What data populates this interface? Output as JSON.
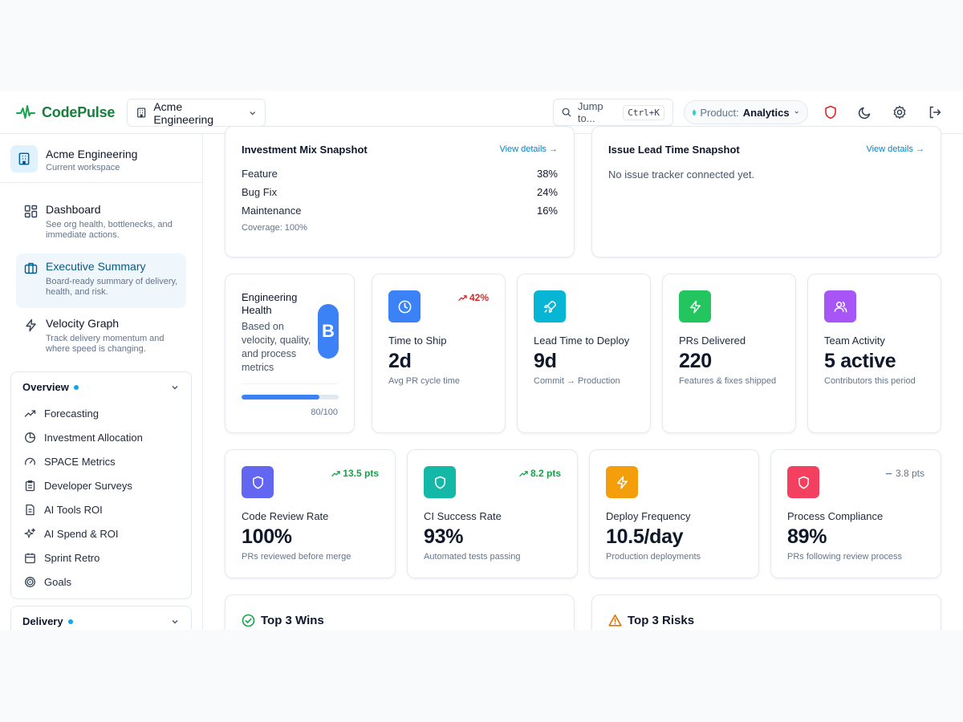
{
  "header": {
    "app_name": "CodePulse",
    "workspace_switch": "Acme Engineering",
    "search_label": "Jump to...",
    "search_shortcut": "Ctrl+K",
    "product_label": "Product:",
    "product_value": "Analytics"
  },
  "sidebar": {
    "workspace_name": "Acme Engineering",
    "workspace_sub": "Current workspace",
    "nav": [
      {
        "title": "Dashboard",
        "desc": "See org health, bottlenecks, and immediate actions."
      },
      {
        "title": "Executive Summary",
        "desc": "Board-ready summary of delivery, health, and risk."
      },
      {
        "title": "Velocity Graph",
        "desc": "Track delivery momentum and where speed is changing."
      }
    ],
    "overview": {
      "title": "Overview",
      "items": [
        "Forecasting",
        "Investment Allocation",
        "SPACE Metrics",
        "Developer Surveys",
        "AI Tools ROI",
        "AI Spend & ROI",
        "Sprint Retro",
        "Goals"
      ]
    },
    "delivery": {
      "title": "Delivery"
    }
  },
  "investment_mix": {
    "title": "Investment Mix Snapshot",
    "link": "View details →",
    "rows": [
      {
        "label": "Feature",
        "pct": "38%"
      },
      {
        "label": "Bug Fix",
        "pct": "24%"
      },
      {
        "label": "Maintenance",
        "pct": "16%"
      }
    ],
    "coverage": "Coverage: 100%"
  },
  "issue_lead": {
    "title": "Issue Lead Time Snapshot",
    "link": "View details →",
    "empty": "No issue tracker connected yet."
  },
  "health": {
    "title": "Engineering Health",
    "desc": "Based on velocity, quality, and process metrics",
    "grade": "B",
    "score_label": "80/100",
    "score_fraction": 0.8
  },
  "metrics_row1": [
    {
      "title": "Time to Ship",
      "value": "2d",
      "sub": "Avg PR cycle time",
      "delta": "42%",
      "color": "#3b82f6"
    },
    {
      "title": "Lead Time to Deploy",
      "value": "9d",
      "sub": "Commit → Production",
      "delta": "",
      "color": "#06b6d4"
    },
    {
      "title": "PRs Delivered",
      "value": "220",
      "sub": "Features & fixes shipped",
      "delta": "",
      "color": "#22c55e"
    },
    {
      "title": "Team Activity",
      "value": "5 active",
      "sub": "Contributors this period",
      "delta": "",
      "color": "#a855f7"
    }
  ],
  "metrics_row2": [
    {
      "title": "Code Review Rate",
      "value": "100%",
      "sub": "PRs reviewed before merge",
      "delta": "13.5 pts",
      "color": "#6366f1"
    },
    {
      "title": "CI Success Rate",
      "value": "93%",
      "sub": "Automated tests passing",
      "delta": "8.2 pts",
      "color": "#14b8a6"
    },
    {
      "title": "Deploy Frequency",
      "value": "10.5/day",
      "sub": "Production deployments",
      "delta": "",
      "color": "#f59e0b"
    },
    {
      "title": "Process Compliance",
      "value": "89%",
      "sub": "PRs following review process",
      "delta": "3.8 pts",
      "color": "#f43f5e"
    }
  ],
  "wins": {
    "title": "Top 3 Wins"
  },
  "risks": {
    "title": "Top 3 Risks"
  }
}
